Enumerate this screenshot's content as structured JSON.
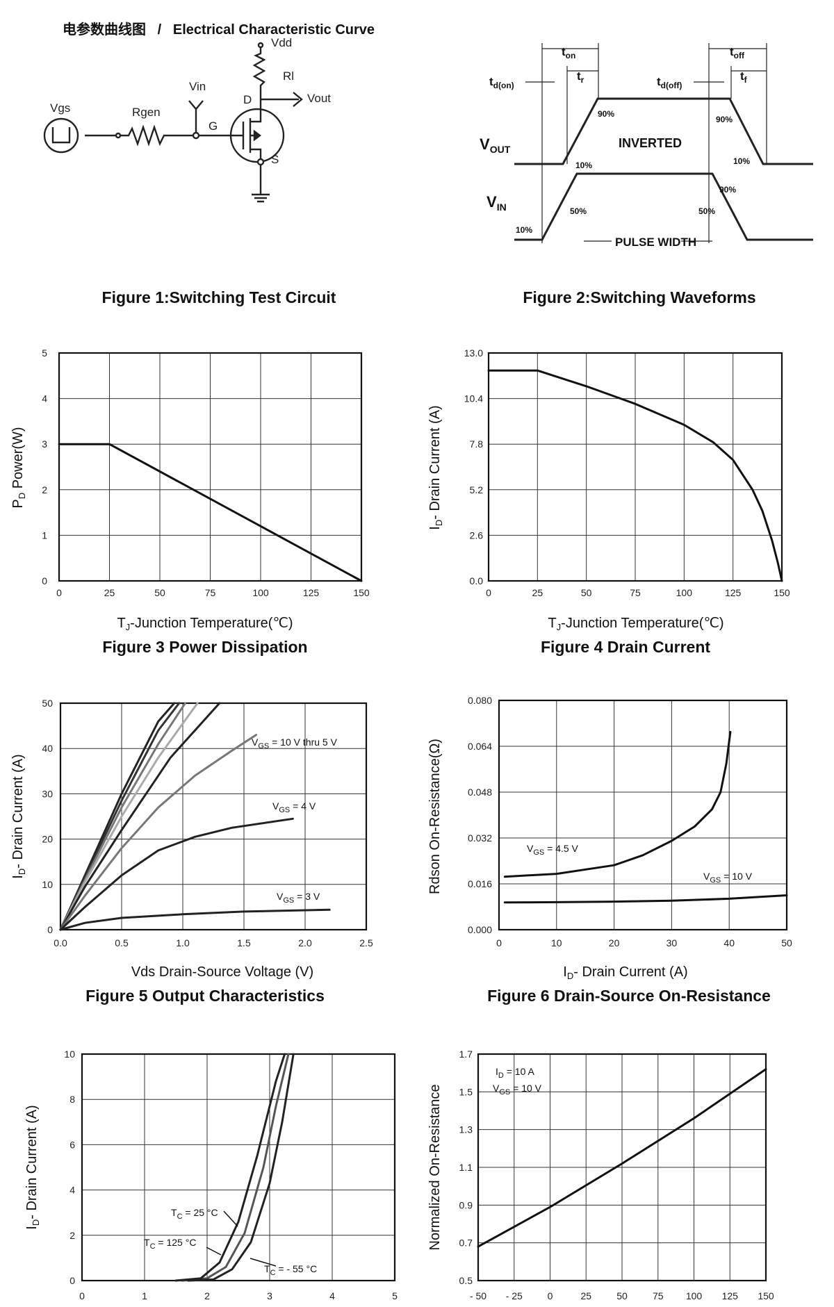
{
  "header": {
    "cn": "电参数曲线图",
    "sep": "/",
    "en": "Electrical Characteristic Curve"
  },
  "figure1": {
    "caption": "Figure 1:Switching Test Circuit",
    "labels": {
      "vdd": "Vdd",
      "rl": "Rl",
      "vout": "Vout",
      "vin": "Vin",
      "d": "D",
      "g": "G",
      "s": "S",
      "vgs": "Vgs",
      "rgen": "Rgen"
    }
  },
  "figure2": {
    "caption": "Figure 2:Switching Waveforms",
    "labels": {
      "ton": "t",
      "ton_sub": "on",
      "toff": "t",
      "toff_sub": "off",
      "tdon": "t",
      "tdon_sub": "d(on)",
      "tr": "t",
      "tr_sub": "r",
      "tdoff": "t",
      "tdoff_sub": "d(off)",
      "tf": "t",
      "tf_sub": "f",
      "vout": "V",
      "vout_sub": "OUT",
      "vin": "V",
      "vin_sub": "IN",
      "inverted": "INVERTED",
      "pulse_width": "PULSE WIDTH",
      "p90a": "90%",
      "p90b": "90%",
      "p90c": "90%",
      "p10a": "10%",
      "p10b": "10%",
      "p10c": "10%",
      "p50a": "50%",
      "p50b": "50%"
    }
  },
  "chart_data": [
    {
      "type": "line",
      "caption": "Figure 3 Power Dissipation",
      "xlabel": "T",
      "xlabel_sub": "J",
      "xlabel_rest": "-Junction Temperature(℃)",
      "ylabel": "P",
      "ylabel_sub": "D",
      "ylabel_rest": "  Power(W)",
      "xlim": [
        0,
        150
      ],
      "ylim": [
        0,
        5
      ],
      "xticks": [
        "0",
        "25",
        "50",
        "75",
        "100",
        "125",
        "150"
      ],
      "yticks": [
        "0",
        "1",
        "2",
        "3",
        "4",
        "5"
      ],
      "series": [
        {
          "x": [
            0,
            25,
            150
          ],
          "y": [
            3,
            3,
            0
          ]
        }
      ]
    },
    {
      "type": "line",
      "caption": "Figure 4 Drain Current",
      "xlabel": "T",
      "xlabel_sub": "J",
      "xlabel_rest": "-Junction Temperature(℃)",
      "ylabel": "I",
      "ylabel_sub": "D",
      "ylabel_rest": "- Drain Current (A)",
      "xlim": [
        0,
        150
      ],
      "ylim": [
        0,
        13
      ],
      "xticks": [
        "0",
        "25",
        "50",
        "75",
        "100",
        "125",
        "150"
      ],
      "yticks": [
        "0.0",
        "2.6",
        "5.2",
        "7.8",
        "10.4",
        "13.0"
      ],
      "series": [
        {
          "x": [
            0,
            25,
            50,
            75,
            100,
            115,
            125,
            135,
            140,
            145,
            148,
            150
          ],
          "y": [
            12,
            12,
            11.1,
            10.1,
            8.9,
            7.9,
            6.9,
            5.2,
            4.0,
            2.3,
            1.0,
            0
          ]
        }
      ]
    },
    {
      "type": "line",
      "caption": "Figure 5 Output Characteristics",
      "xlabel": "Vds Drain-Source Voltage (V)",
      "ylabel": "I",
      "ylabel_sub": "D",
      "ylabel_rest": "- Drain Current (A)",
      "xlim": [
        0,
        2.5
      ],
      "ylim": [
        0,
        50
      ],
      "xticks": [
        "0.0",
        "0.5",
        "1.0",
        "1.5",
        "2.0",
        "2.5"
      ],
      "yticks": [
        "0",
        "10",
        "20",
        "30",
        "40",
        "50"
      ],
      "annotations": [
        {
          "pre": "V",
          "sub": "GS",
          "post": " = 10 V thru 5 V"
        },
        {
          "pre": "V",
          "sub": "GS",
          "post": " = 4 V"
        },
        {
          "pre": "V",
          "sub": "GS",
          "post": " = 3 V"
        }
      ],
      "series": [
        {
          "color": "#222222",
          "x": [
            0,
            0.2,
            0.5,
            0.8,
            0.93
          ],
          "y": [
            0,
            12,
            30,
            46,
            50
          ]
        },
        {
          "color": "#333333",
          "x": [
            0,
            0.2,
            0.5,
            0.8,
            0.97
          ],
          "y": [
            0,
            11.5,
            28.5,
            44,
            50
          ]
        },
        {
          "color": "#777777",
          "x": [
            0,
            0.2,
            0.5,
            0.8,
            1.02
          ],
          "y": [
            0,
            11,
            27,
            41,
            50
          ]
        },
        {
          "color": "#aaaaaa",
          "x": [
            0,
            0.2,
            0.5,
            0.8,
            1.12
          ],
          "y": [
            0,
            10.5,
            25,
            38,
            50
          ]
        },
        {
          "color": "#222222",
          "x": [
            0,
            0.2,
            0.5,
            0.9,
            1.3
          ],
          "y": [
            0,
            9.5,
            22,
            38,
            50
          ]
        },
        {
          "color": "#777777",
          "x": [
            0,
            0.2,
            0.5,
            0.8,
            1.1,
            1.4,
            1.6
          ],
          "y": [
            0,
            7.5,
            18,
            27,
            34,
            39.5,
            43
          ]
        },
        {
          "color": "#222222",
          "x": [
            0,
            0.2,
            0.5,
            0.8,
            1.1,
            1.4,
            1.9
          ],
          "y": [
            0,
            5,
            12,
            17.5,
            20.5,
            22.5,
            24.5
          ]
        },
        {
          "color": "#222222",
          "x": [
            0,
            0.2,
            0.5,
            1.0,
            1.5,
            2.2
          ],
          "y": [
            0,
            1.5,
            2.6,
            3.4,
            4.0,
            4.4
          ]
        }
      ]
    },
    {
      "type": "line",
      "caption": "Figure 6 Drain-Source On-Resistance",
      "xlabel": "I",
      "xlabel_sub": "D",
      "xlabel_rest": "- Drain Current (A)",
      "ylabel": "Rdson On-Resistance(Ω)",
      "xlim": [
        0,
        50
      ],
      "ylim": [
        0,
        0.08
      ],
      "xticks": [
        "0",
        "10",
        "20",
        "30",
        "40",
        "50"
      ],
      "yticks": [
        "0.000",
        "0.016",
        "0.032",
        "0.048",
        "0.064",
        "0.080"
      ],
      "annotations": [
        {
          "pre": "V",
          "sub": "GS",
          "post": " = 4.5 V"
        },
        {
          "pre": "V",
          "sub": "GS",
          "post": " = 10 V"
        }
      ],
      "series": [
        {
          "x": [
            1,
            10,
            20,
            25,
            30,
            34,
            37,
            38.5,
            39.5,
            40.2
          ],
          "y": [
            0.0185,
            0.0195,
            0.0225,
            0.026,
            0.031,
            0.036,
            0.042,
            0.048,
            0.058,
            0.069
          ]
        },
        {
          "x": [
            1,
            10,
            20,
            30,
            40,
            50
          ],
          "y": [
            0.0095,
            0.0096,
            0.0098,
            0.0101,
            0.0108,
            0.012
          ]
        }
      ]
    },
    {
      "type": "line",
      "caption": "",
      "xlabel": "",
      "ylabel": "I",
      "ylabel_sub": "D",
      "ylabel_rest": "- Drain Current (A)",
      "xlim": [
        0,
        5
      ],
      "ylim": [
        0,
        10
      ],
      "xticks": [
        "0",
        "1",
        "2",
        "3",
        "4",
        "5"
      ],
      "yticks": [
        "0",
        "2",
        "4",
        "6",
        "8",
        "10"
      ],
      "annotations": [
        {
          "pre": "T",
          "sub": "C",
          "post": " = 25 °C"
        },
        {
          "pre": "T",
          "sub": "C",
          "post": " = 125 °C"
        },
        {
          "pre": "T",
          "sub": "C",
          "post": " = - 55 °C"
        }
      ],
      "series": [
        {
          "color": "#555555",
          "x": [
            1.6,
            2.0,
            2.3,
            2.6,
            2.9,
            3.1,
            3.3
          ],
          "y": [
            0,
            0.1,
            0.6,
            2.1,
            5.0,
            7.7,
            10
          ]
        },
        {
          "color": "#222222",
          "x": [
            1.5,
            1.9,
            2.2,
            2.5,
            2.8,
            3.1,
            3.24
          ],
          "y": [
            0,
            0.1,
            0.8,
            2.6,
            5.5,
            8.8,
            10
          ]
        },
        {
          "color": "#222222",
          "x": [
            1.7,
            2.1,
            2.4,
            2.7,
            3.0,
            3.2,
            3.38
          ],
          "y": [
            0,
            0.05,
            0.5,
            1.7,
            4.3,
            7.0,
            10
          ]
        }
      ]
    },
    {
      "type": "line",
      "caption": "",
      "xlabel": "",
      "ylabel": "Normalized On-Resistance",
      "xlim": [
        -50,
        150
      ],
      "ylim": [
        0.5,
        1.7
      ],
      "xticks": [
        "- 50",
        "- 25",
        "0",
        "25",
        "50",
        "75",
        "100",
        "125",
        "150"
      ],
      "yticks": [
        "0.5",
        "0.7",
        "0.9",
        "1.1",
        "1.3",
        "1.5",
        "1.7"
      ],
      "annotations": [
        {
          "pre": "I",
          "sub": "D",
          "post": " = 10 A"
        },
        {
          "pre": "V",
          "sub": "GS",
          "post": " = 10 V"
        }
      ],
      "series": [
        {
          "x": [
            -50,
            0,
            50,
            100,
            150
          ],
          "y": [
            0.68,
            0.89,
            1.12,
            1.36,
            1.62
          ]
        }
      ]
    }
  ]
}
